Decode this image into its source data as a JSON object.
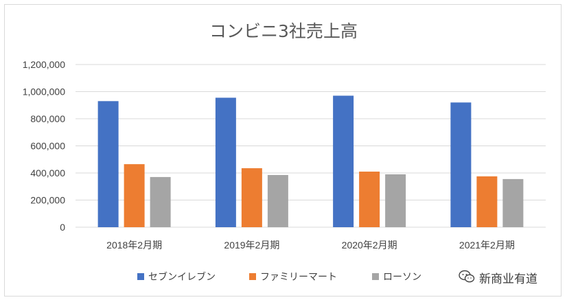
{
  "chart_data": {
    "type": "bar",
    "title": "コンビニ3社売上高",
    "categories": [
      "2018年2月期",
      "2019年2月期",
      "2020年2月期",
      "2021年2月期"
    ],
    "series": [
      {
        "name": "セブンイレブン",
        "color": "#4472C4",
        "values": [
          930000,
          955000,
          970000,
          920000
        ]
      },
      {
        "name": "ファミリーマート",
        "color": "#ED7D31",
        "values": [
          465000,
          435000,
          410000,
          375000
        ]
      },
      {
        "name": "ローソン",
        "color": "#A5A5A5",
        "values": [
          370000,
          385000,
          390000,
          355000
        ]
      }
    ],
    "y_ticks": [
      "0",
      "200,000",
      "400,000",
      "600,000",
      "800,000",
      "1,000,000",
      "1,200,000"
    ],
    "ylim": [
      0,
      1200000
    ],
    "xlabel": "",
    "ylabel": "",
    "grid": true,
    "legend_position": "bottom"
  },
  "watermark": {
    "text": "新商业有道",
    "icon": "wechat-icon"
  }
}
